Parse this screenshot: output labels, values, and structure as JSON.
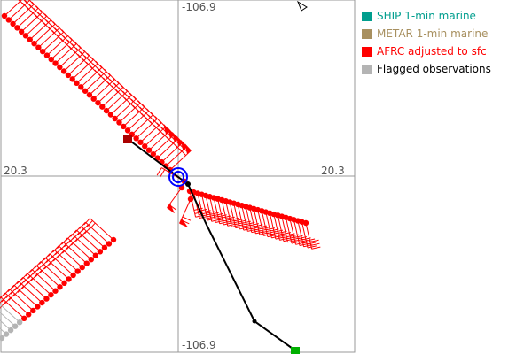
{
  "axes": {
    "top_label": "-106.9",
    "bottom_label": "-106.9",
    "left_label": "20.3",
    "right_label": "20.3"
  },
  "legend": [
    {
      "label": "SHIP 1-min marine",
      "color": "#009e8e"
    },
    {
      "label": "METAR 1-min marine",
      "color": "#a89060"
    },
    {
      "label": "AFRC adjusted to sfc",
      "color": "#ff0000"
    },
    {
      "label": "Flagged observations",
      "color": "#b4b4b4"
    }
  ],
  "colors": {
    "track": "#000000",
    "center_marker": "#0000ff",
    "track_start": "#aa0000",
    "track_end": "#00b000"
  }
}
